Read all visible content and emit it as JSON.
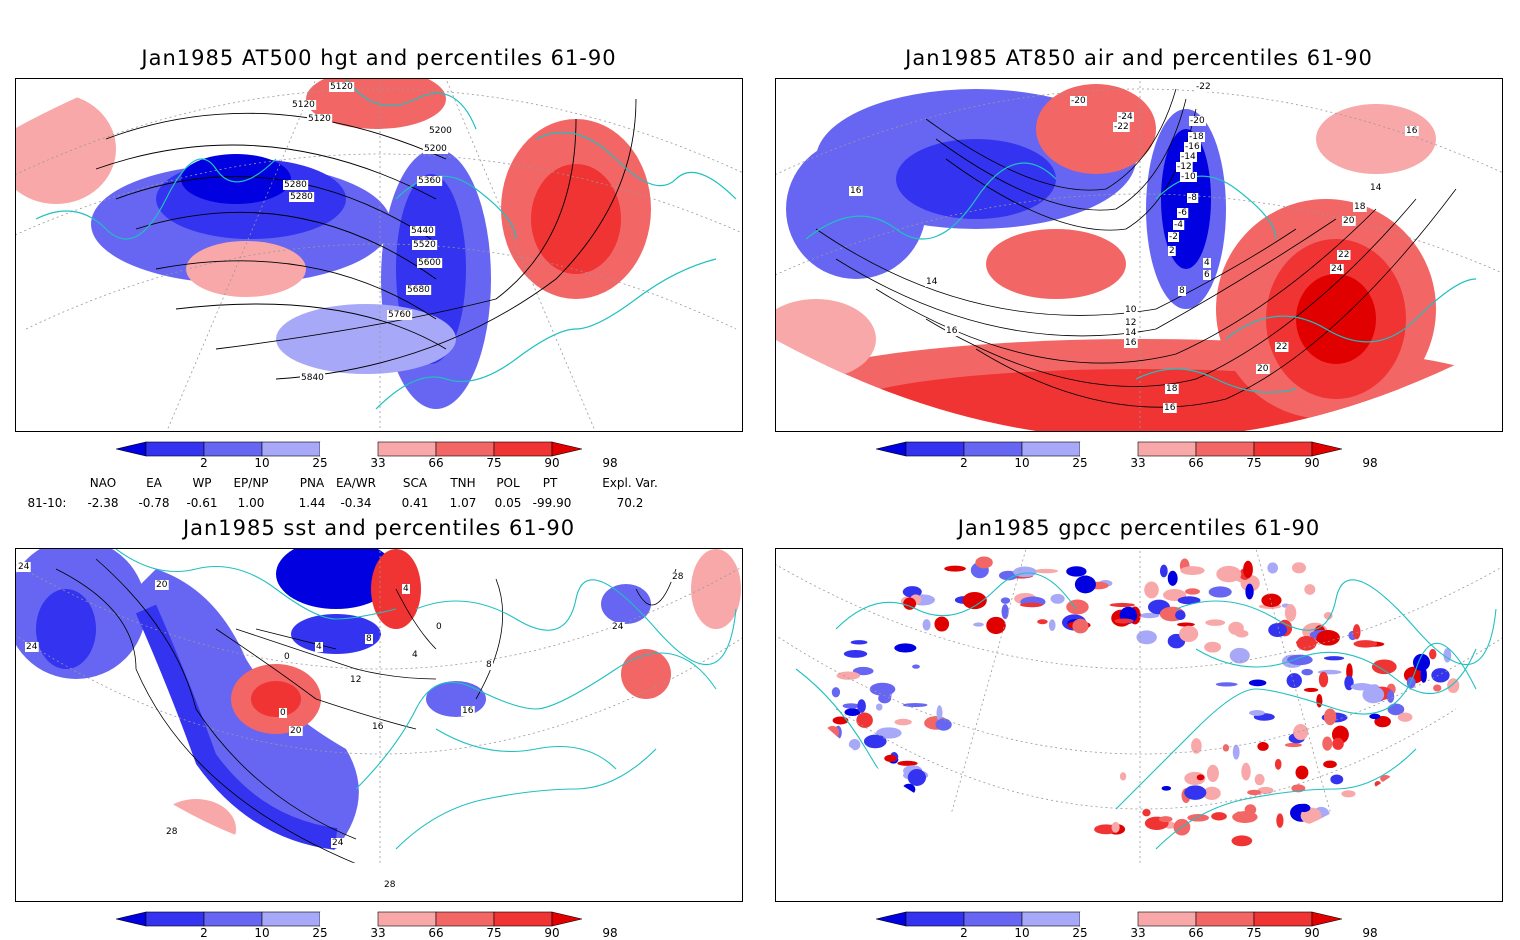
{
  "panels": [
    {
      "id": "p1",
      "title": "Jan1985 AT500 hgt and percentiles 61-90",
      "contour_labels": [
        "5120",
        "5120",
        "5120",
        "5200",
        "5200",
        "5280",
        "5280",
        "5360",
        "5440",
        "5520",
        "5600",
        "5680",
        "5760",
        "5840"
      ]
    },
    {
      "id": "p2",
      "title": "Jan1985 AT850 air and percentiles 61-90",
      "contour_labels": [
        "-22",
        "-20",
        "-24",
        "-22",
        "-20",
        "-18",
        "-16",
        "-14",
        "-12",
        "-10",
        "-8",
        "-6",
        "-4",
        "-2",
        "2",
        "4",
        "6",
        "8",
        "10",
        "12",
        "14",
        "16",
        "14",
        "16",
        "16",
        "14",
        "16",
        "18",
        "20",
        "22",
        "24",
        "22",
        "20",
        "18",
        "16"
      ]
    },
    {
      "id": "p3",
      "title": "Jan1985 sst and percentiles 61-90",
      "contour_labels": [
        "24",
        "20",
        "24",
        "0",
        "4",
        "8",
        "12",
        "16",
        "20",
        "24",
        "28",
        "28",
        "4",
        "8",
        "16",
        "0",
        "4",
        "28",
        "24",
        "0"
      ]
    },
    {
      "id": "p4",
      "title": "Jan1985 gpcc percentiles 61-90",
      "contour_labels": []
    }
  ],
  "colorbar": {
    "labels": [
      "2",
      "10",
      "25",
      "33",
      "66",
      "75",
      "90",
      "98"
    ],
    "colors": [
      "#0000e0",
      "#3333f0",
      "#6666f2",
      "#a8a8f8",
      "#ffffff",
      "#f8a8a8",
      "#f26666",
      "#f03333",
      "#e00000"
    ]
  },
  "indices": {
    "row_label": "81-10:",
    "headers": [
      "NAO",
      "EA",
      "WP",
      "EP/NP",
      "PNA",
      "EA/WR",
      "SCA",
      "TNH",
      "POL",
      "PT",
      "Expl. Var."
    ],
    "values": [
      "-2.38",
      "-0.78",
      "-0.61",
      "1.00",
      "1.44",
      "-0.34",
      "0.41",
      "1.07",
      "0.05",
      "-99.90",
      "70.2"
    ]
  },
  "colors": {
    "coastline": "#20c0c0",
    "contour": "#000000",
    "grid": "#999999",
    "cold": "#3d3df0",
    "cold_light": "#a8a8f8",
    "warm": "#f03333",
    "warm_light": "#f8a8a8"
  }
}
